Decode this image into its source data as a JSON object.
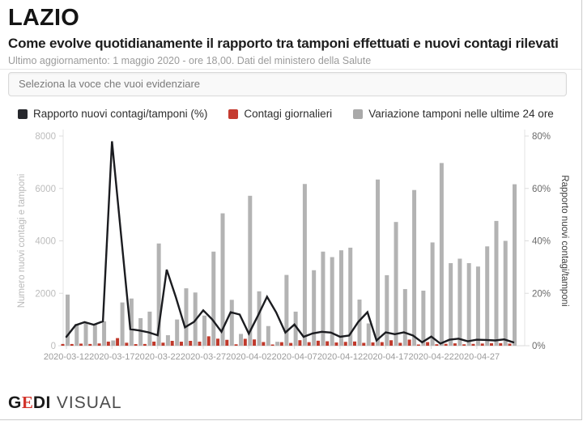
{
  "header": {
    "title": "LAZIO",
    "subtitle": "Come evolve quotidianamente il rapporto tra tamponi effettuati e nuovi contagi rilevati",
    "updated": "Ultimo aggiornamento: 1 maggio 2020 - ore 18,00. Dati del ministero della Salute"
  },
  "controls": {
    "select_placeholder": "Seleziona la voce che vuoi evidenziare"
  },
  "legend": {
    "items": [
      {
        "label": "Rapporto nuovi contagi/tamponi (%)",
        "color": "#26272c"
      },
      {
        "label": "Contagi giornalieri",
        "color": "#c53b30"
      },
      {
        "label": "Variazione tamponi nelle ultime 24 ore",
        "color": "#a9a9a9"
      }
    ]
  },
  "chart_data": {
    "type": "composite",
    "x": [
      "2020-03-12",
      "2020-03-13",
      "2020-03-14",
      "2020-03-15",
      "2020-03-16",
      "2020-03-17",
      "2020-03-18",
      "2020-03-19",
      "2020-03-20",
      "2020-03-21",
      "2020-03-22",
      "2020-03-23",
      "2020-03-24",
      "2020-03-25",
      "2020-03-26",
      "2020-03-27",
      "2020-03-28",
      "2020-03-29",
      "2020-03-30",
      "2020-04-01",
      "2020-04-02",
      "2020-04-03",
      "2020-04-04",
      "2020-04-05",
      "2020-04-06",
      "2020-04-07",
      "2020-04-08",
      "2020-04-09",
      "2020-04-10",
      "2020-04-11",
      "2020-04-12",
      "2020-04-13",
      "2020-04-14",
      "2020-04-15",
      "2020-04-16",
      "2020-04-17",
      "2020-04-18",
      "2020-04-19",
      "2020-04-20",
      "2020-04-21",
      "2020-04-22",
      "2020-04-23",
      "2020-04-24",
      "2020-04-25",
      "2020-04-26",
      "2020-04-27",
      "2020-04-28",
      "2020-04-29",
      "2020-04-30",
      "2020-05-01"
    ],
    "x_tick_labels": [
      "2020-03-12",
      "2020-03-17",
      "2020-03-22",
      "2020-03-27",
      "2020-04-02",
      "2020-04-07",
      "2020-04-12",
      "2020-04-17",
      "2020-04-22",
      "2020-04-27"
    ],
    "x_tick_indices": [
      0,
      5,
      10,
      15,
      20,
      25,
      30,
      35,
      40,
      45
    ],
    "series": [
      {
        "name": "Variazione tamponi nelle ultime 24 ore",
        "type": "bar",
        "axis": "left",
        "color": "#b3b3b3",
        "values": [
          1950,
          830,
          880,
          830,
          930,
          200,
          1650,
          1800,
          1050,
          1300,
          3900,
          400,
          1000,
          2190,
          2030,
          1150,
          3590,
          5050,
          1750,
          450,
          5720,
          2075,
          750,
          150,
          2700,
          1300,
          6170,
          2880,
          3590,
          3380,
          3640,
          3740,
          1760,
          850,
          6340,
          2690,
          4720,
          2160,
          5940,
          2100,
          3940,
          6970,
          3150,
          3320,
          3150,
          3020,
          3790,
          4760,
          4000,
          6160
        ]
      },
      {
        "name": "Contagi giornalieri",
        "type": "bar",
        "axis": "left",
        "color": "#c0392b",
        "values": [
          66,
          65,
          79,
          66,
          86,
          156,
          290,
          113,
          61,
          66,
          156,
          116,
          185,
          153,
          185,
          155,
          359,
          268,
          224,
          54,
          263,
          239,
          140,
          30,
          135,
          105,
          210,
          135,
          190,
          169,
          124,
          146,
          160,
          109,
          127,
          137,
          208,
          110,
          232,
          30,
          138,
          56,
          72,
          90,
          54,
          69,
          83,
          95,
          96,
          80
        ]
      },
      {
        "name": "Rapporto nuovi contagi/tamponi (%)",
        "type": "line",
        "axis": "right",
        "color": "#1b1c20",
        "values": [
          3.4,
          7.8,
          9,
          8,
          9.3,
          78,
          42,
          6.3,
          5.8,
          5.1,
          4,
          29,
          18.5,
          7,
          9.1,
          13.5,
          10,
          5.3,
          12.8,
          11.9,
          4.6,
          11.5,
          18.7,
          12.7,
          5,
          8.1,
          3.4,
          4.7,
          5.3,
          5,
          3.4,
          3.9,
          9.1,
          12.8,
          2,
          5.1,
          4.4,
          5.1,
          3.9,
          1.3,
          3.5,
          0.8,
          2.3,
          2.7,
          1.7,
          2.3,
          2.2,
          2,
          2.4,
          1.3
        ]
      }
    ],
    "left_axis": {
      "label": "Numero nuovi contagi e tamponi",
      "ticks": [
        0,
        2000,
        4000,
        6000,
        8000
      ],
      "range": [
        0,
        8000
      ]
    },
    "right_axis": {
      "label": "Rapporto nuovi contagi/tamponi",
      "ticks": [
        0,
        20,
        40,
        60,
        80
      ],
      "suffix": "%",
      "range": [
        0,
        80
      ]
    },
    "grid": false,
    "legend_position": "top"
  },
  "footer": {
    "logo_g": "G",
    "logo_e": "E",
    "logo_di": "DI",
    "logo_rest": "VISUAL"
  }
}
